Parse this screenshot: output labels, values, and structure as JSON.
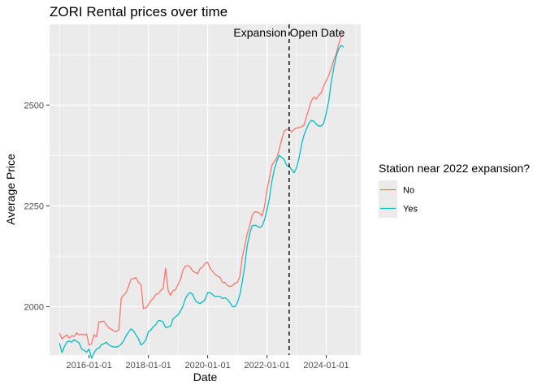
{
  "chart_data": {
    "type": "line",
    "title": "ZORI Rental prices over time",
    "xlabel": "Date",
    "ylabel": "Average Price",
    "x_ticks": [
      "2016-01-01",
      "2018-01-01",
      "2020-01-01",
      "2022-01-01",
      "2024-01-01"
    ],
    "y_ticks": [
      2000,
      2250,
      2500
    ],
    "xlim": [
      "2014-09-01",
      "2025-03-01"
    ],
    "ylim": [
      1880,
      2700
    ],
    "grid": true,
    "legend": {
      "title": "Station near 2022 expansion?",
      "position": "right"
    },
    "annotation": {
      "label": "Expansion Open Date",
      "date": "2022-10-01",
      "style": "dashed vertical line"
    },
    "x": [
      "2015-01",
      "2015-02",
      "2015-03",
      "2015-04",
      "2015-05",
      "2015-06",
      "2015-07",
      "2015-08",
      "2015-09",
      "2015-10",
      "2015-11",
      "2015-12",
      "2016-01",
      "2016-02",
      "2016-03",
      "2016-04",
      "2016-05",
      "2016-06",
      "2016-07",
      "2016-08",
      "2016-09",
      "2016-10",
      "2016-11",
      "2016-12",
      "2017-01",
      "2017-02",
      "2017-03",
      "2017-04",
      "2017-05",
      "2017-06",
      "2017-07",
      "2017-08",
      "2017-09",
      "2017-10",
      "2017-11",
      "2017-12",
      "2018-01",
      "2018-02",
      "2018-03",
      "2018-04",
      "2018-05",
      "2018-06",
      "2018-07",
      "2018-08",
      "2018-09",
      "2018-10",
      "2018-11",
      "2018-12",
      "2019-01",
      "2019-02",
      "2019-03",
      "2019-04",
      "2019-05",
      "2019-06",
      "2019-07",
      "2019-08",
      "2019-09",
      "2019-10",
      "2019-11",
      "2019-12",
      "2020-01",
      "2020-02",
      "2020-03",
      "2020-04",
      "2020-05",
      "2020-06",
      "2020-07",
      "2020-08",
      "2020-09",
      "2020-10",
      "2020-11",
      "2020-12",
      "2021-01",
      "2021-02",
      "2021-03",
      "2021-04",
      "2021-05",
      "2021-06",
      "2021-07",
      "2021-08",
      "2021-09",
      "2021-10",
      "2021-11",
      "2021-12",
      "2022-01",
      "2022-02",
      "2022-03",
      "2022-04",
      "2022-05",
      "2022-06",
      "2022-07",
      "2022-08",
      "2022-09",
      "2022-10",
      "2022-11",
      "2022-12",
      "2023-01",
      "2023-02",
      "2023-03",
      "2023-04",
      "2023-05",
      "2023-06",
      "2023-07",
      "2023-08",
      "2023-09",
      "2023-10",
      "2023-11",
      "2023-12",
      "2024-01",
      "2024-02",
      "2024-03",
      "2024-04",
      "2024-05",
      "2024-06",
      "2024-07",
      "2024-08"
    ],
    "series": [
      {
        "name": "No",
        "color": "#F8766D",
        "values": [
          1935,
          1920,
          1925,
          1930,
          1922,
          1928,
          1926,
          1935,
          1930,
          1932,
          1930,
          1932,
          1905,
          1908,
          1930,
          1925,
          1962,
          1963,
          1964,
          1955,
          1947,
          1944,
          1940,
          1938,
          1942,
          2022,
          2028,
          2035,
          2050,
          2068,
          2070,
          2072,
          2060,
          2055,
          1995,
          1997,
          2005,
          2015,
          2020,
          2030,
          2032,
          2040,
          2045,
          2095,
          2040,
          2028,
          2040,
          2042,
          2055,
          2068,
          2090,
          2100,
          2102,
          2098,
          2088,
          2085,
          2082,
          2095,
          2098,
          2108,
          2110,
          2095,
          2088,
          2080,
          2076,
          2073,
          2060,
          2060,
          2052,
          2050,
          2052,
          2058,
          2060,
          2075,
          2120,
          2150,
          2180,
          2200,
          2225,
          2235,
          2235,
          2232,
          2225,
          2248,
          2290,
          2320,
          2350,
          2360,
          2368,
          2390,
          2415,
          2435,
          2440,
          2440,
          2433,
          2440,
          2443,
          2444,
          2446,
          2450,
          2470,
          2490,
          2510,
          2520,
          2515,
          2525,
          2530,
          2548,
          2560,
          2574,
          2590,
          2610,
          2625,
          2650,
          2670,
          2675
        ]
      },
      {
        "name": "Yes",
        "color": "#00BFC4",
        "values": [
          1910,
          1886,
          1900,
          1912,
          1915,
          1912,
          1918,
          1914,
          1910,
          1895,
          1892,
          1887,
          1895,
          1872,
          1885,
          1895,
          1897,
          1906,
          1908,
          1912,
          1905,
          1902,
          1900,
          1900,
          1902,
          1908,
          1915,
          1928,
          1937,
          1945,
          1940,
          1930,
          1920,
          1905,
          1910,
          1918,
          1938,
          1942,
          1950,
          1955,
          1965,
          1965,
          1962,
          1948,
          1950,
          1952,
          1970,
          1975,
          1980,
          1990,
          2000,
          2020,
          2030,
          2035,
          2030,
          2016,
          2010,
          2008,
          2012,
          2018,
          2035,
          2035,
          2030,
          2025,
          2026,
          2025,
          2020,
          2022,
          2018,
          2010,
          2000,
          2000,
          2010,
          2030,
          2060,
          2100,
          2150,
          2180,
          2200,
          2202,
          2200,
          2196,
          2200,
          2215,
          2240,
          2270,
          2310,
          2340,
          2360,
          2375,
          2370,
          2365,
          2350,
          2348,
          2340,
          2332,
          2345,
          2370,
          2400,
          2425,
          2440,
          2455,
          2462,
          2460,
          2452,
          2448,
          2448,
          2455,
          2480,
          2510,
          2555,
          2590,
          2620,
          2638,
          2648,
          2644
        ]
      }
    ]
  }
}
